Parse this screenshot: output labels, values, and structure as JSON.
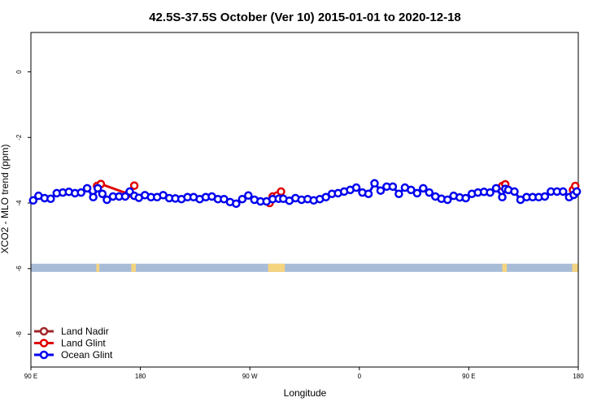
{
  "chart_data": {
    "type": "line",
    "title": "42.5S-37.5S October (Ver 10)   2015-01-01 to 2020-12-18",
    "xlabel": "Longitude",
    "ylabel": "XCO2 - MLO trend (ppm)",
    "xlim": [
      90,
      450
    ],
    "ylim": [
      -9.0,
      1.2
    ],
    "x_ticks": [
      {
        "value": 90,
        "label": "90 E"
      },
      {
        "value": 162,
        "label": "180"
      },
      {
        "value": 234,
        "label": "90 W"
      },
      {
        "value": 306,
        "label": "0"
      },
      {
        "value": 378,
        "label": "90 E"
      },
      {
        "value": 450,
        "label": "180"
      }
    ],
    "y_ticks": [
      {
        "value": 0,
        "label": "0"
      },
      {
        "value": -2,
        "label": "-2"
      },
      {
        "value": -4,
        "label": "-4"
      },
      {
        "value": -6,
        "label": "-6"
      },
      {
        "value": -8,
        "label": "-8"
      }
    ],
    "grid": false,
    "legend_position": "bottom-left",
    "coverage_bar": {
      "y_range": [
        -6.1,
        -5.85
      ],
      "ocean_color": "#a8bcd8",
      "land_color": "#f5d480",
      "land_spans": [
        [
          133,
          135
        ],
        [
          156,
          159
        ],
        [
          246,
          257
        ],
        [
          400,
          403
        ],
        [
          446,
          450
        ]
      ]
    },
    "series": [
      {
        "name": "Land Nadir",
        "color": "#a0262a",
        "x": [],
        "y": []
      },
      {
        "name": "Land Glint",
        "color": "#e00000",
        "x": [
          133.5,
          136,
          154,
          158,
          247,
          249,
          252,
          254.5,
          400,
          402,
          446.5,
          448
        ],
        "y": [
          -3.48,
          -3.42,
          -3.72,
          -3.47,
          -4.0,
          -3.8,
          -3.77,
          -3.65,
          -3.48,
          -3.43,
          -3.6,
          -3.48
        ]
      },
      {
        "name": "Ocean Glint",
        "color": "#0000ee",
        "x": [
          91.5,
          95,
          99,
          103,
          107,
          111,
          115,
          119,
          123,
          127,
          131,
          134,
          137,
          140,
          144,
          148,
          152,
          155,
          158,
          161,
          165,
          169,
          173,
          177,
          181,
          185,
          189,
          193,
          197,
          201,
          205,
          209,
          213,
          217,
          221,
          225,
          229,
          233,
          237,
          241,
          245,
          249,
          253,
          256,
          260,
          264,
          268,
          272,
          276,
          280,
          284,
          288,
          292,
          296,
          300,
          304,
          308,
          312,
          316,
          320,
          324,
          328,
          332,
          336,
          340,
          344,
          348,
          352,
          356,
          360,
          364,
          368,
          372,
          376,
          380,
          384,
          388,
          392,
          396,
          400,
          402,
          404,
          408,
          412,
          416,
          420,
          424,
          428,
          432,
          436,
          440,
          444,
          447,
          449
        ],
        "y": [
          -3.92,
          -3.78,
          -3.85,
          -3.87,
          -3.7,
          -3.68,
          -3.66,
          -3.7,
          -3.68,
          -3.55,
          -3.82,
          -3.55,
          -3.72,
          -3.9,
          -3.8,
          -3.8,
          -3.8,
          -3.65,
          -3.78,
          -3.84,
          -3.76,
          -3.82,
          -3.82,
          -3.76,
          -3.85,
          -3.86,
          -3.88,
          -3.82,
          -3.82,
          -3.88,
          -3.82,
          -3.8,
          -3.88,
          -3.88,
          -3.97,
          -4.02,
          -3.88,
          -3.77,
          -3.9,
          -3.95,
          -3.95,
          -3.88,
          -3.87,
          -3.87,
          -3.93,
          -3.85,
          -3.9,
          -3.88,
          -3.92,
          -3.88,
          -3.82,
          -3.72,
          -3.7,
          -3.65,
          -3.6,
          -3.53,
          -3.68,
          -3.72,
          -3.4,
          -3.62,
          -3.5,
          -3.5,
          -3.72,
          -3.53,
          -3.6,
          -3.7,
          -3.55,
          -3.68,
          -3.8,
          -3.87,
          -3.9,
          -3.78,
          -3.83,
          -3.85,
          -3.72,
          -3.68,
          -3.66,
          -3.68,
          -3.55,
          -3.82,
          -3.57,
          -3.6,
          -3.65,
          -3.9,
          -3.82,
          -3.82,
          -3.82,
          -3.8,
          -3.65,
          -3.65,
          -3.65,
          -3.82,
          -3.75,
          -3.65
        ]
      }
    ]
  }
}
